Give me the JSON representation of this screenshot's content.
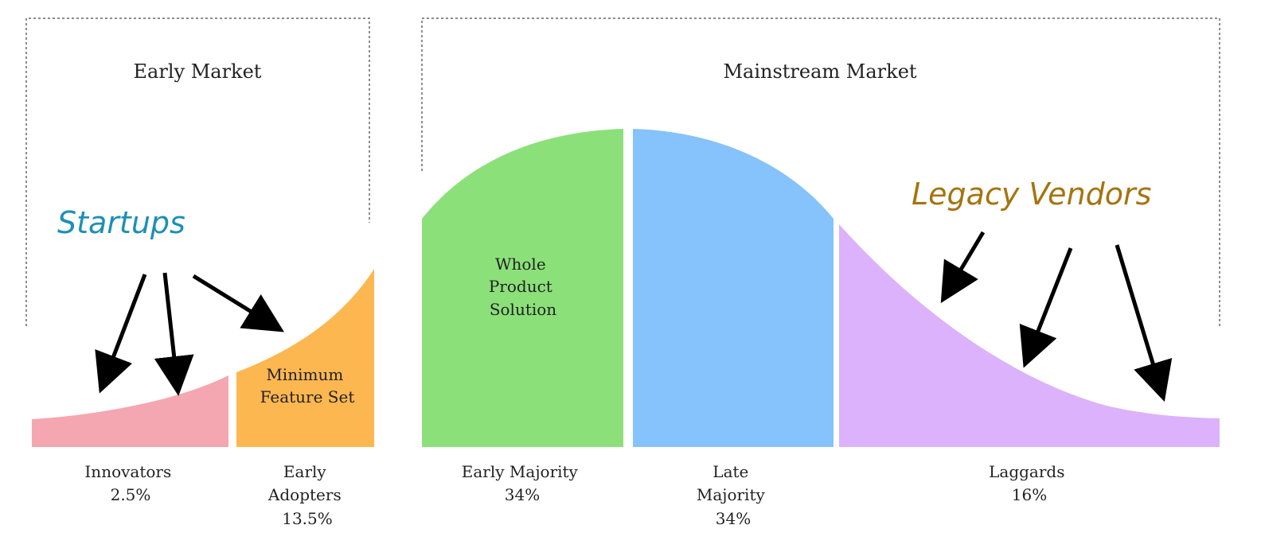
{
  "markets": {
    "early": "Early Market",
    "mainstream": "Mainstream Market"
  },
  "segments": [
    {
      "lines": [
        "Innovators",
        "2.5%"
      ],
      "color": "#f4a7b0"
    },
    {
      "lines": [
        "Early",
        "Adopters",
        "13.5%"
      ],
      "color": "#fdb751"
    },
    {
      "lines": [
        "Early Majority",
        "34%"
      ],
      "color": "#8be07a"
    },
    {
      "lines": [
        "Late",
        "Majority",
        "34%"
      ],
      "color": "#86c2fc"
    },
    {
      "lines": [
        "Laggards",
        "16%"
      ],
      "color": "#dbb2fb"
    }
  ],
  "inner_labels": {
    "mfs": [
      "Minimum",
      "Feature Set"
    ],
    "wps": [
      "Whole",
      "Product",
      "Solution"
    ]
  },
  "annotations": {
    "startups": {
      "text": "Startups",
      "color": "#1d8fb7"
    },
    "legacy": {
      "text": "Legacy Vendors",
      "color": "#a5740f"
    }
  }
}
